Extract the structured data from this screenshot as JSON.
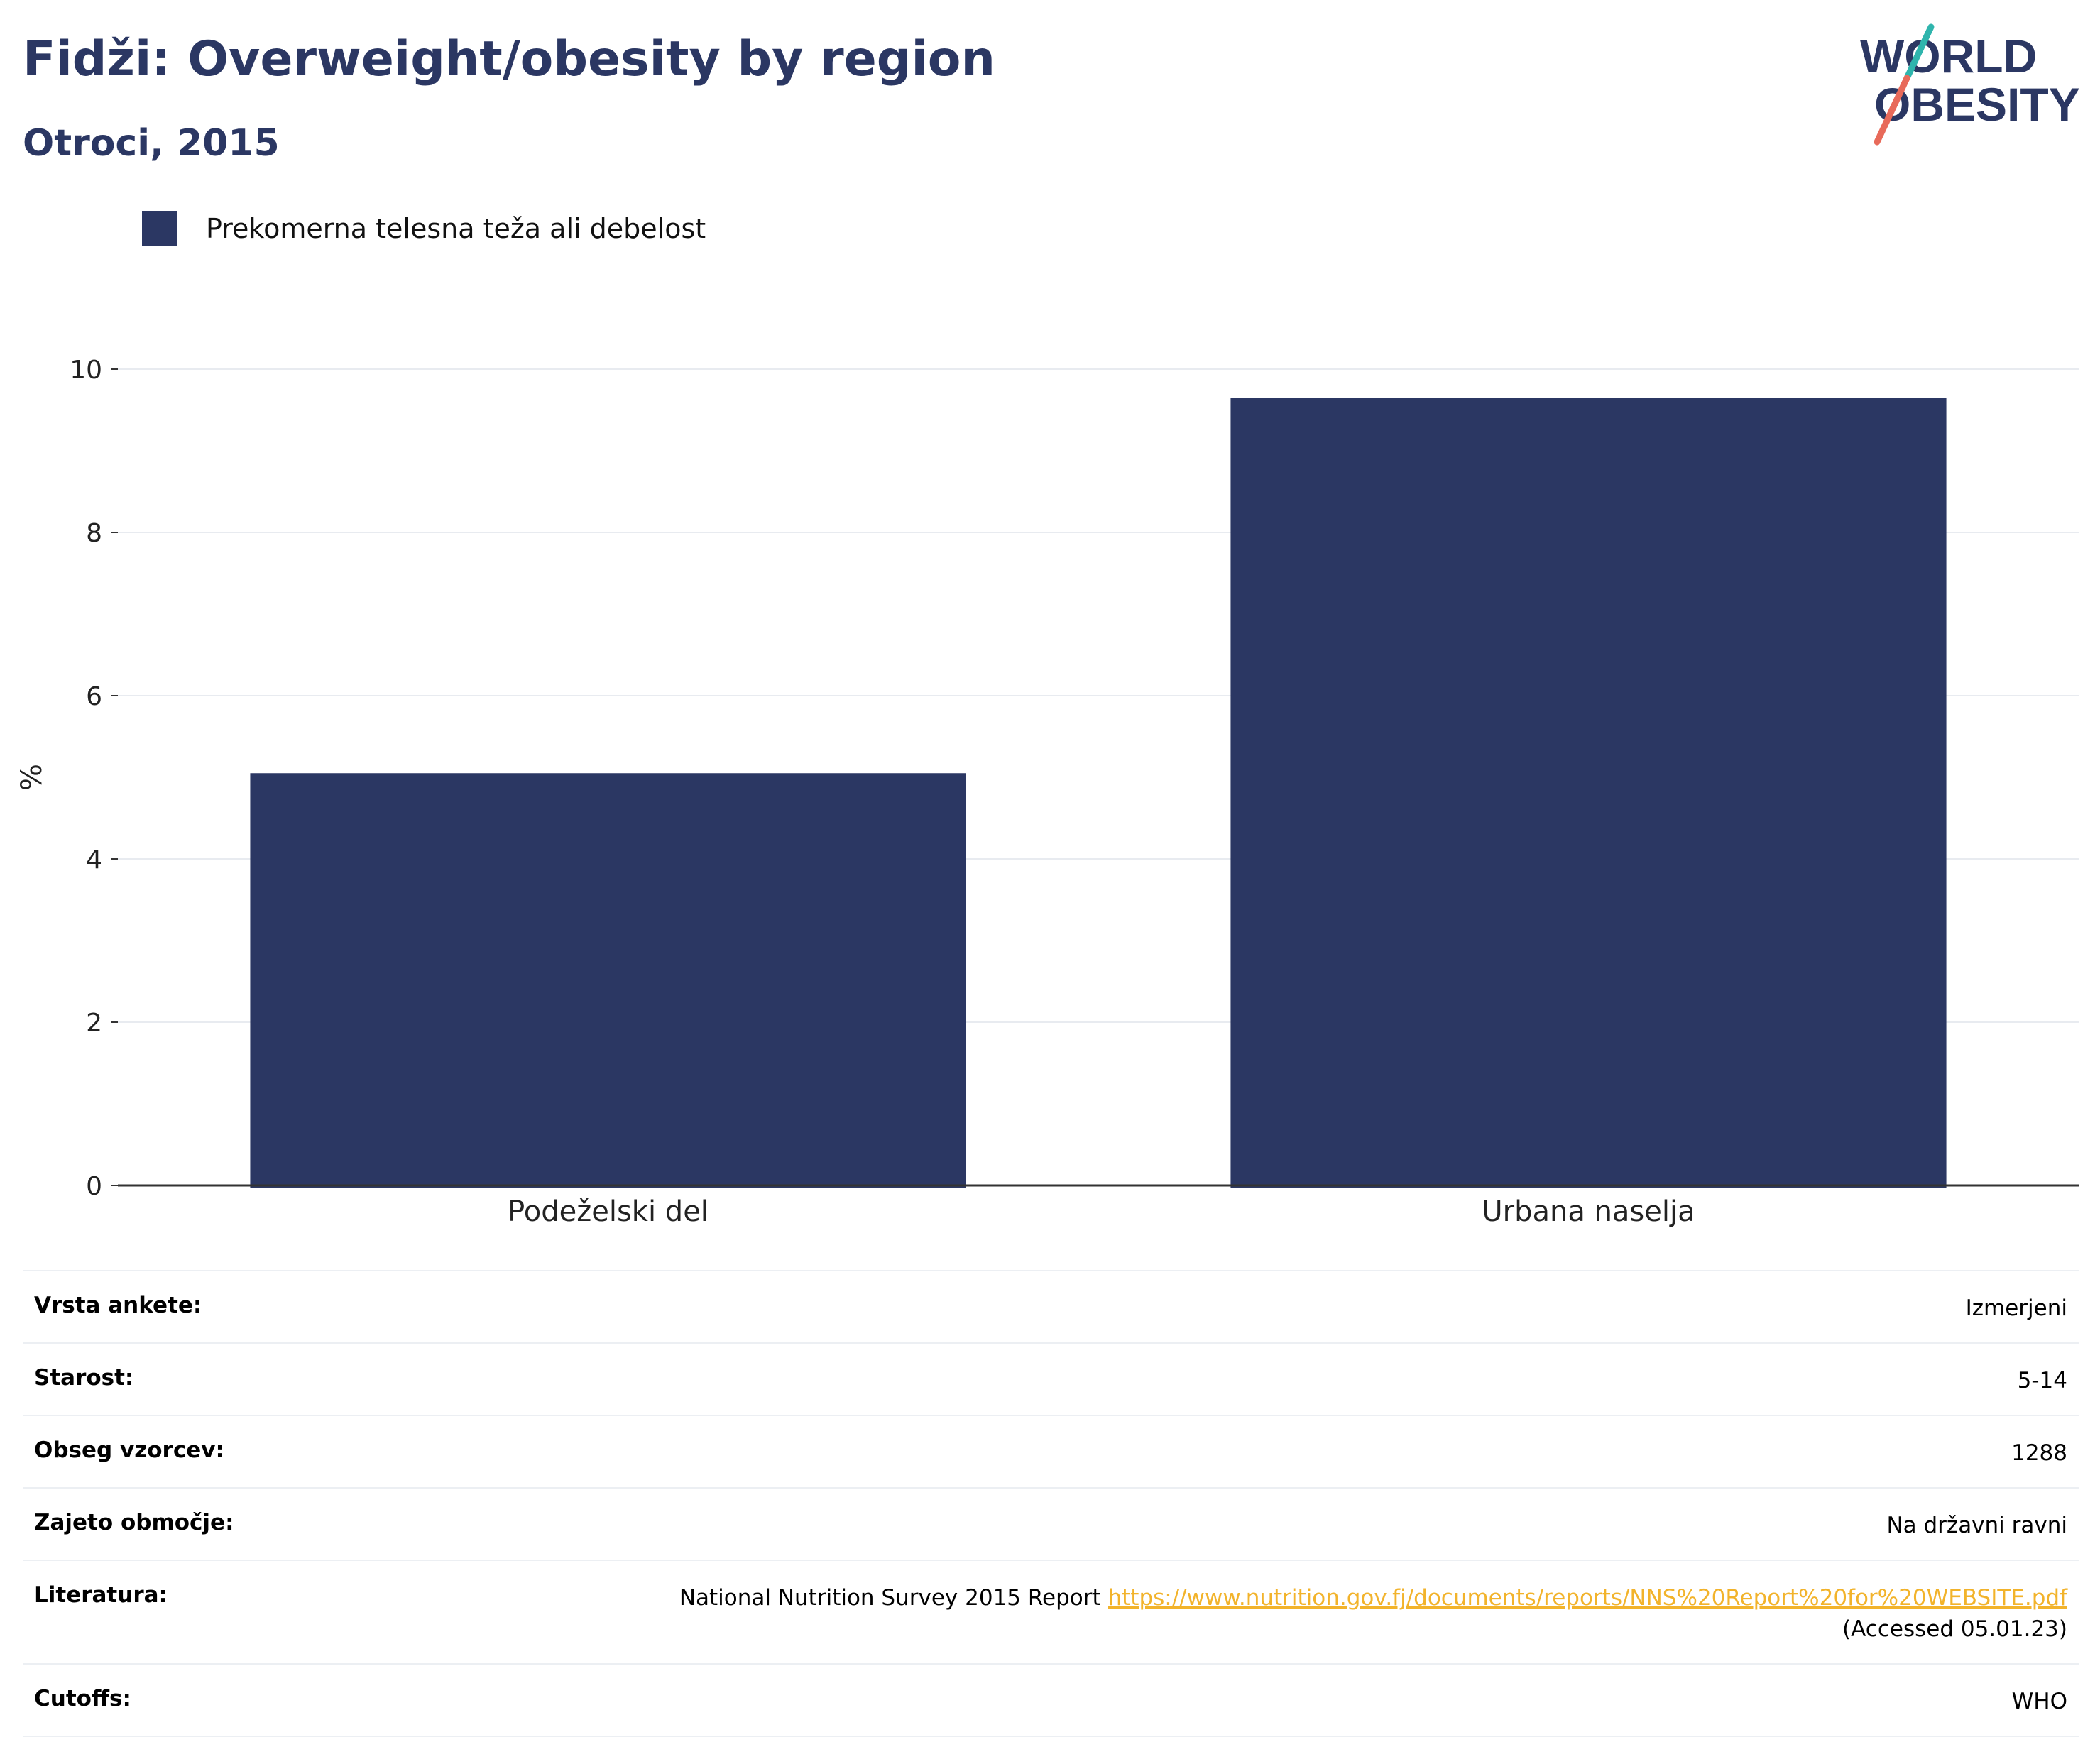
{
  "header": {
    "title": "Fidži: Overweight/obesity by region",
    "subtitle": "Otroci, 2015"
  },
  "logo": {
    "line1": "WORLD",
    "line2": "OBESITY",
    "accent_teal": "#2fb5ad",
    "accent_red": "#e86a5a"
  },
  "colors": {
    "primary": "#2b3763",
    "link": "#f2b32b"
  },
  "chart_data": {
    "type": "bar",
    "categories": [
      "Podeželski del",
      "Urbana naselja"
    ],
    "series": [
      {
        "name": "Prekomerna telesna teža ali debelost",
        "values": [
          5.05,
          9.65
        ],
        "color": "#2b3763"
      }
    ],
    "ylabel": "%",
    "ylim": [
      0,
      10
    ],
    "yticks": [
      0,
      2,
      4,
      6,
      8,
      10
    ],
    "grid": true,
    "legend_position": "top-left"
  },
  "info": {
    "rows": [
      {
        "key": "Vrsta ankete:",
        "value": "Izmerjeni"
      },
      {
        "key": "Starost:",
        "value": "5-14"
      },
      {
        "key": "Obseg vzorcev:",
        "value": "1288"
      },
      {
        "key": "Zajeto območje:",
        "value": "Na državni ravni"
      }
    ],
    "literature": {
      "key": "Literatura:",
      "text": "National Nutrition Survey 2015 Report",
      "link": "https://www.nutrition.gov.fj/documents/reports/NNS%20Report%20for%20WEBSITE.pdf",
      "accessed": "(Accessed 05.01.23)"
    },
    "cutoffs": {
      "key": "Cutoffs:",
      "value": "WHO"
    }
  }
}
